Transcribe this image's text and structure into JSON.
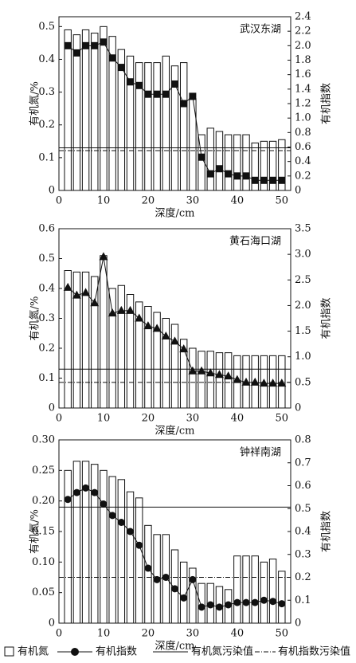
{
  "chart_data": [
    {
      "type": "bar_line",
      "annotation": "武汉东湖",
      "xlabel": "深度/cm",
      "ylabel": "有机氮/%",
      "y2label": "有机指数",
      "x": [
        2,
        4,
        6,
        8,
        10,
        12,
        14,
        16,
        18,
        20,
        22,
        24,
        26,
        28,
        30,
        32,
        34,
        36,
        38,
        40,
        42,
        44,
        46,
        48,
        50
      ],
      "xlim": [
        0,
        52
      ],
      "xticks": [
        0,
        10,
        20,
        30,
        40,
        50
      ],
      "ylim": [
        0,
        0.53
      ],
      "yticks": [
        0,
        0.1,
        0.2,
        0.3,
        0.4,
        0.5
      ],
      "y2lim": [
        0,
        2.4
      ],
      "y2ticks": [
        0,
        0.2,
        0.4,
        0.6,
        0.8,
        {
          "value": 1,
          "label": "1.0"
        },
        1.2,
        1.4,
        1.6,
        1.8,
        {
          "value": 2,
          "label": "2.0"
        },
        2.2,
        2.4
      ],
      "series": [
        {
          "name": "有机氮",
          "type": "bar",
          "color": "#ffffff",
          "values": [
            0.49,
            0.475,
            0.49,
            0.48,
            0.5,
            0.47,
            0.43,
            0.41,
            0.39,
            0.39,
            0.39,
            0.41,
            0.38,
            0.39,
            0.28,
            0.17,
            0.19,
            0.18,
            0.17,
            0.17,
            0.17,
            0.145,
            0.15,
            0.15,
            0.155
          ]
        },
        {
          "name": "有机指数",
          "type": "line",
          "axis": "y2",
          "marker": "square",
          "color": "#111111",
          "values": [
            2.0,
            1.9,
            2.0,
            2.0,
            2.05,
            1.83,
            1.7,
            1.5,
            1.45,
            1.33,
            1.33,
            1.33,
            1.47,
            1.2,
            1.3,
            0.46,
            0.23,
            0.3,
            0.23,
            0.2,
            0.2,
            0.14,
            0.14,
            0.14,
            0.14
          ]
        }
      ],
      "reference_lines": [
        {
          "name": "有机氮污染值",
          "axis": "y",
          "style": "solid",
          "value": 0.13
        },
        {
          "name": "有机指数污染值",
          "axis": "y2",
          "style": "dashdot",
          "value": 0.55
        }
      ]
    },
    {
      "type": "bar_line",
      "annotation": "黄石海口湖",
      "xlabel": "深度/cm",
      "ylabel": "有机氮/%",
      "y2label": "有机指数",
      "x": [
        2,
        4,
        6,
        8,
        10,
        12,
        14,
        16,
        18,
        20,
        22,
        24,
        26,
        28,
        30,
        32,
        34,
        36,
        38,
        40,
        42,
        44,
        46,
        48,
        50
      ],
      "xlim": [
        0,
        52
      ],
      "xticks": [
        0,
        10,
        20,
        30,
        40,
        50
      ],
      "ylim": [
        0,
        0.6
      ],
      "yticks": [
        0,
        0.1,
        0.2,
        0.3,
        0.4,
        0.5,
        0.6
      ],
      "y2lim": [
        0,
        3.5
      ],
      "y2ticks": [
        0,
        0.5,
        {
          "value": 1,
          "label": "1.0"
        },
        1.5,
        {
          "value": 2,
          "label": "2.0"
        },
        2.5,
        {
          "value": 3,
          "label": "3.0"
        },
        3.5
      ],
      "series": [
        {
          "name": "有机氮",
          "type": "bar",
          "color": "#ffffff",
          "values": [
            0.46,
            0.455,
            0.455,
            0.44,
            0.51,
            0.4,
            0.41,
            0.38,
            0.355,
            0.34,
            0.32,
            0.3,
            0.28,
            0.23,
            0.2,
            0.19,
            0.19,
            0.185,
            0.185,
            0.175,
            0.175,
            0.175,
            0.175,
            0.175,
            0.175
          ]
        },
        {
          "name": "有机指数",
          "type": "line",
          "axis": "y2",
          "marker": "triangle",
          "color": "#111111",
          "values": [
            2.35,
            2.2,
            2.25,
            2.05,
            2.95,
            1.85,
            1.9,
            1.9,
            1.75,
            1.6,
            1.55,
            1.4,
            1.3,
            1.15,
            0.72,
            0.72,
            0.68,
            0.65,
            0.62,
            0.55,
            0.5,
            0.5,
            0.48,
            0.48,
            0.48
          ]
        }
      ],
      "reference_lines": [
        {
          "name": "有机氮污染值",
          "axis": "y",
          "style": "solid",
          "value": 0.13
        },
        {
          "name": "有机指数污染值",
          "axis": "y2",
          "style": "dashdot",
          "value": 0.5
        }
      ]
    },
    {
      "type": "bar_line",
      "annotation": "钟祥南湖",
      "xlabel": "深度/cm",
      "ylabel": "有机氮/%",
      "y2label": "有机指数",
      "x": [
        2,
        4,
        6,
        8,
        10,
        12,
        14,
        16,
        18,
        20,
        22,
        24,
        26,
        28,
        30,
        32,
        34,
        36,
        38,
        40,
        42,
        44,
        46,
        48,
        50
      ],
      "xlim": [
        0,
        52
      ],
      "xticks": [
        0,
        10,
        20,
        30,
        40,
        50
      ],
      "ylim": [
        0,
        0.3
      ],
      "yticks": [
        0,
        0.05,
        {
          "value": 0.1,
          "label": "0.10"
        },
        0.15,
        {
          "value": 0.2,
          "label": "0.20"
        },
        0.25,
        {
          "value": 0.3,
          "label": "0.30"
        }
      ],
      "y2lim": [
        0,
        0.8
      ],
      "y2ticks": [
        0,
        0.1,
        0.2,
        0.3,
        0.4,
        0.5,
        0.6,
        0.7,
        0.8
      ],
      "series": [
        {
          "name": "有机氮",
          "type": "bar",
          "color": "#ffffff",
          "values": [
            0.25,
            0.265,
            0.265,
            0.26,
            0.25,
            0.24,
            0.235,
            0.215,
            0.205,
            0.16,
            0.145,
            0.145,
            0.12,
            0.1,
            0.09,
            0.065,
            0.065,
            0.06,
            0.055,
            0.11,
            0.11,
            0.11,
            0.1,
            0.105,
            0.085
          ]
        },
        {
          "name": "有机指数",
          "type": "line",
          "axis": "y2",
          "marker": "circle",
          "color": "#111111",
          "values": [
            0.54,
            0.57,
            0.59,
            0.57,
            0.52,
            0.47,
            0.44,
            0.4,
            0.34,
            0.24,
            0.19,
            0.2,
            0.15,
            0.11,
            0.19,
            0.07,
            0.08,
            0.07,
            0.08,
            0.09,
            0.09,
            0.09,
            0.1,
            0.095,
            0.085
          ]
        }
      ],
      "reference_lines": [
        {
          "name": "有机氮污染值",
          "axis": "y",
          "style": "solid",
          "value": 0.19
        },
        {
          "name": "有机指数污染值",
          "axis": "y2",
          "style": "dashdot",
          "value": 0.2
        }
      ]
    }
  ]
}
